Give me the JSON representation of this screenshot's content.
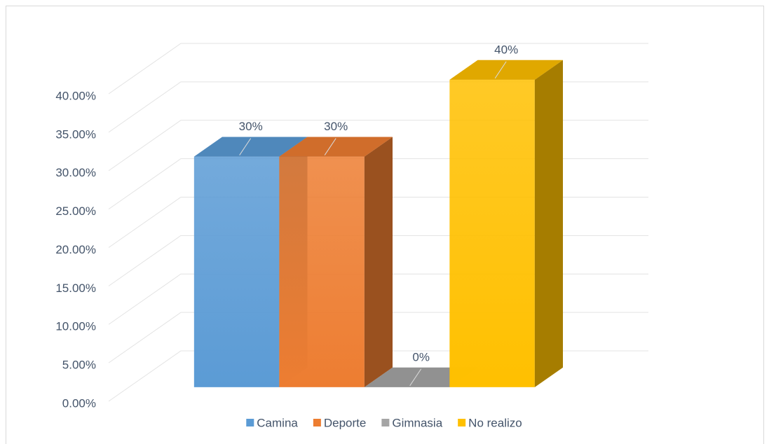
{
  "chart_data": {
    "type": "bar3d",
    "categories": [
      "Camina",
      "Deporte",
      "Gimnasia",
      "No realizo"
    ],
    "values": [
      30,
      30,
      0,
      40
    ],
    "value_labels": [
      "30%",
      "30%",
      "0%",
      "40%"
    ],
    "colors": [
      "#5b9bd5",
      "#ed7d31",
      "#a5a5a5",
      "#ffc000"
    ],
    "ylim": [
      0,
      40
    ],
    "yticks": [
      {
        "value": 0,
        "label": "0.00%"
      },
      {
        "value": 5,
        "label": "5.00%"
      },
      {
        "value": 10,
        "label": "10.00%"
      },
      {
        "value": 15,
        "label": "15.00%"
      },
      {
        "value": 20,
        "label": "20.00%"
      },
      {
        "value": 25,
        "label": "25.00%"
      },
      {
        "value": 30,
        "label": "30.00%"
      },
      {
        "value": 35,
        "label": "35.00%"
      },
      {
        "value": 40,
        "label": "40.00%"
      }
    ],
    "grid": true,
    "legend": "bottom"
  }
}
